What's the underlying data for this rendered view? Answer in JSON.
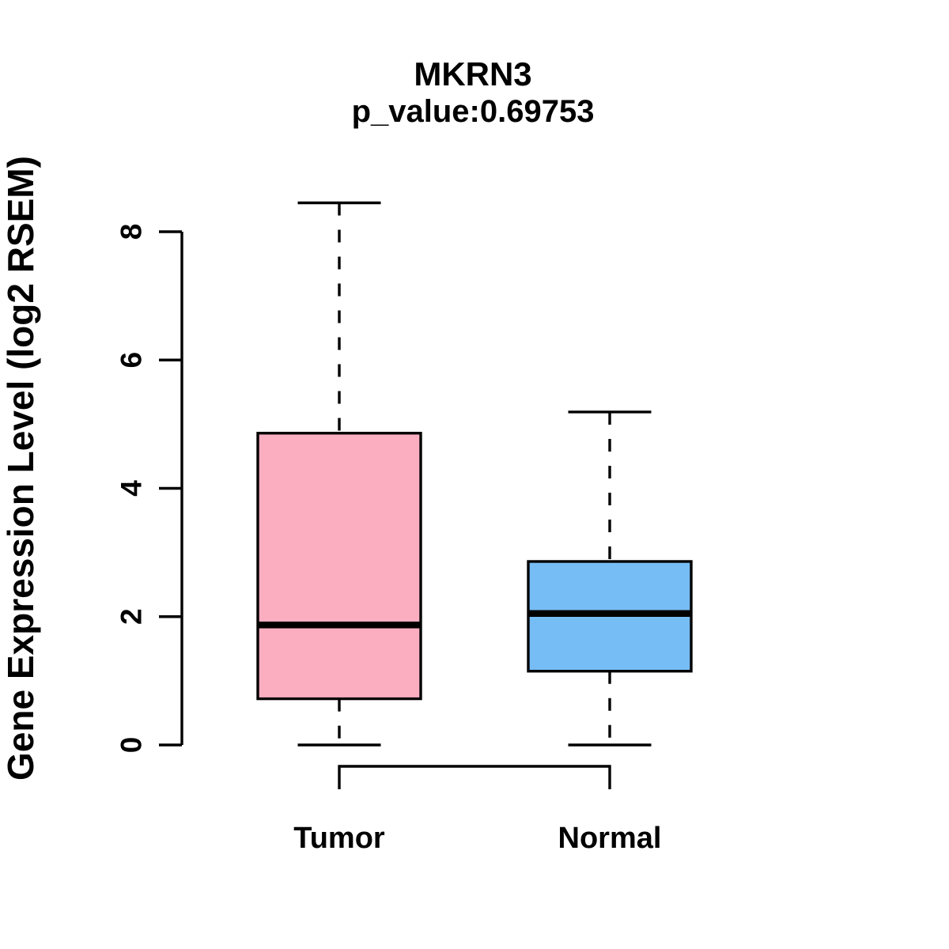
{
  "chart_data": {
    "type": "boxplot",
    "title": "MKRN3",
    "subtitle": "p_value:0.69753",
    "ylabel": "Gene Expression Level (log2 RSEM)",
    "xlabel": "",
    "ylim": [
      0,
      8.6
    ],
    "yticks": [
      0,
      2,
      4,
      6,
      8
    ],
    "grid": false,
    "legend": "none",
    "background_color": "#FFFFFF",
    "line_color": "#000000",
    "groups": [
      {
        "label": "Tumor",
        "color": "#FCAEC1",
        "stats": {
          "min": 0,
          "q1": 0.72,
          "median": 1.87,
          "q3": 4.86,
          "max": 8.45
        }
      },
      {
        "label": "Normal",
        "color": "#77BDF5",
        "stats": {
          "min": 0,
          "q1": 1.15,
          "median": 2.05,
          "q3": 2.86,
          "max": 5.19
        }
      }
    ],
    "comparison_bracket": {
      "between": [
        "Tumor",
        "Normal"
      ]
    }
  }
}
